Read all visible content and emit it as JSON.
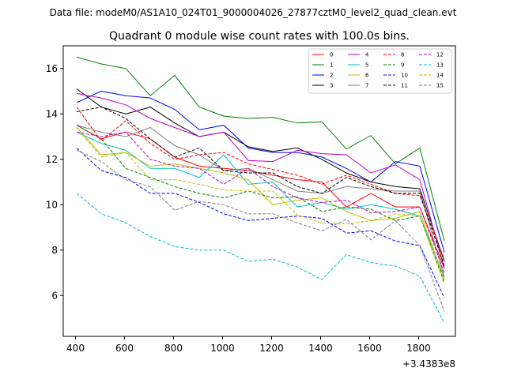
{
  "chart_data": {
    "type": "line",
    "suptitle": "Data file: modeM0/AS1A10_024T01_9000004026_27877cztM0_level2_quad_clean.evt",
    "title": "Quadrant 0 module wise count rates with 100.0s bins.",
    "xlabel": "",
    "ylabel": "",
    "x_offset_text": "+3.4383e8",
    "xlim": [
      350,
      1950
    ],
    "ylim": [
      4.2,
      17.0
    ],
    "xticks": [
      400,
      600,
      800,
      1000,
      1200,
      1400,
      1600,
      1800
    ],
    "yticks": [
      6,
      8,
      10,
      12,
      14,
      16
    ],
    "grid": false,
    "legend_position": "top-right",
    "legend_columns": 4,
    "x": [
      405,
      505,
      605,
      705,
      805,
      905,
      1005,
      1105,
      1205,
      1305,
      1405,
      1505,
      1605,
      1705,
      1805,
      1905
    ],
    "series": [
      {
        "name": "0",
        "color": "#ff0000",
        "dash": "solid",
        "values": [
          13.5,
          12.9,
          13.2,
          12.9,
          12.1,
          11.7,
          11.6,
          11.5,
          11.3,
          11.1,
          11.0,
          9.9,
          10.5,
          9.9,
          9.9,
          7.2
        ]
      },
      {
        "name": "1",
        "color": "#008000",
        "dash": "solid",
        "values": [
          16.5,
          16.2,
          16.0,
          14.8,
          15.7,
          14.3,
          13.9,
          13.8,
          13.85,
          13.6,
          13.65,
          12.45,
          13.05,
          11.8,
          12.5,
          8.4
        ]
      },
      {
        "name": "2",
        "color": "#0000ff",
        "dash": "solid",
        "values": [
          14.5,
          15.0,
          14.8,
          14.7,
          14.2,
          13.3,
          13.5,
          12.5,
          12.3,
          12.3,
          12.1,
          11.6,
          11.0,
          11.9,
          11.7,
          7.9
        ]
      },
      {
        "name": "3",
        "color": "#000000",
        "dash": "solid",
        "values": [
          15.1,
          14.3,
          14.0,
          14.3,
          13.6,
          13.0,
          13.2,
          12.55,
          12.35,
          12.5,
          12.0,
          11.4,
          11.0,
          10.8,
          10.7,
          7.5
        ]
      },
      {
        "name": "4",
        "color": "#bf00bf",
        "dash": "solid",
        "values": [
          14.9,
          14.7,
          14.4,
          13.8,
          13.4,
          13.0,
          13.2,
          11.95,
          11.9,
          12.4,
          12.25,
          12.2,
          11.4,
          11.75,
          11.1,
          7.2
        ]
      },
      {
        "name": "5",
        "color": "#00bfbf",
        "dash": "solid",
        "values": [
          13.2,
          12.7,
          12.4,
          11.6,
          11.6,
          11.2,
          12.2,
          10.9,
          11.0,
          9.9,
          10.1,
          9.8,
          10.0,
          9.8,
          9.5,
          6.8
        ]
      },
      {
        "name": "6",
        "color": "#bfbf00",
        "dash": "solid",
        "values": [
          13.4,
          12.2,
          12.3,
          11.7,
          11.8,
          11.6,
          11.4,
          11.1,
          10.0,
          10.2,
          10.3,
          9.7,
          9.3,
          9.4,
          9.7,
          6.7
        ]
      },
      {
        "name": "7",
        "color": "#808080",
        "dash": "solid",
        "values": [
          13.5,
          13.2,
          13.0,
          13.4,
          12.6,
          12.2,
          11.5,
          11.6,
          11.1,
          10.6,
          10.5,
          10.8,
          10.7,
          10.6,
          10.6,
          6.8
        ]
      },
      {
        "name": "8",
        "color": "#ff0000",
        "dash": "dashed",
        "values": [
          14.3,
          12.8,
          13.7,
          12.7,
          12.0,
          12.2,
          12.3,
          11.8,
          11.55,
          11.3,
          10.9,
          11.3,
          10.9,
          10.5,
          10.4,
          7.6
        ]
      },
      {
        "name": "9",
        "color": "#008000",
        "dash": "dashed",
        "values": [
          13.5,
          12.9,
          11.6,
          11.2,
          10.8,
          10.5,
          10.3,
          10.6,
          10.3,
          10.35,
          9.7,
          9.9,
          9.8,
          9.3,
          9.5,
          6.6
        ]
      },
      {
        "name": "10",
        "color": "#0000ff",
        "dash": "dashed",
        "values": [
          12.5,
          11.5,
          11.2,
          10.5,
          10.5,
          10.1,
          9.6,
          9.3,
          9.4,
          9.5,
          9.4,
          8.75,
          8.85,
          8.4,
          8.2,
          5.9
        ]
      },
      {
        "name": "11",
        "color": "#000000",
        "dash": "dashed",
        "values": [
          14.1,
          14.3,
          13.8,
          12.9,
          12.1,
          12.5,
          11.5,
          11.4,
          11.4,
          10.8,
          10.5,
          11.2,
          10.8,
          10.5,
          10.5,
          7.3
        ]
      },
      {
        "name": "12",
        "color": "#bf00bf",
        "dash": "dashed",
        "values": [
          13.2,
          13.0,
          13.2,
          12.0,
          11.7,
          11.6,
          10.9,
          11.6,
          10.8,
          10.3,
          10.1,
          10.2,
          9.65,
          9.7,
          9.9,
          7.0
        ]
      },
      {
        "name": "13",
        "color": "#00bfbf",
        "dash": "dashed",
        "values": [
          10.5,
          9.6,
          9.2,
          8.6,
          8.15,
          8.0,
          8.0,
          7.5,
          7.6,
          7.25,
          6.7,
          7.8,
          7.45,
          7.3,
          6.85,
          4.8
        ]
      },
      {
        "name": "14",
        "color": "#bfbf00",
        "dash": "dashed",
        "values": [
          13.4,
          12.1,
          12.3,
          11.1,
          11.1,
          10.9,
          10.65,
          10.6,
          10.6,
          9.55,
          9.2,
          9.15,
          9.3,
          9.6,
          9.5,
          6.5
        ]
      },
      {
        "name": "15",
        "color": "#808080",
        "dash": "dashed",
        "values": [
          12.4,
          11.9,
          11.1,
          10.8,
          9.75,
          10.15,
          10.0,
          9.6,
          9.6,
          9.2,
          8.85,
          9.35,
          8.45,
          9.3,
          8.2,
          5.3
        ]
      }
    ]
  }
}
